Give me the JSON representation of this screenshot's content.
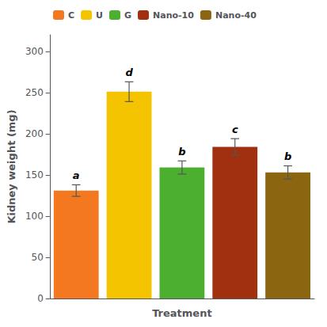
{
  "chart_data": {
    "type": "bar",
    "categories": [
      "C",
      "U",
      "G",
      "Nano-10",
      "Nano-40"
    ],
    "values": [
      131,
      251,
      159,
      184,
      153
    ],
    "errors": [
      7,
      12,
      8,
      10,
      8
    ],
    "colors": [
      "#F47820",
      "#F5C400",
      "#4CAF30",
      "#A03010",
      "#8B6510"
    ],
    "annotations": [
      "a",
      "d",
      "b",
      "c",
      "b"
    ],
    "xlabel": "Treatment",
    "ylabel": "Kidney weight (mg)",
    "ylim": [
      0,
      320
    ],
    "yticks": [
      0,
      50,
      100,
      150,
      200,
      250,
      300
    ],
    "grid": false,
    "legend": "upper left",
    "tick_labels": "y"
  }
}
